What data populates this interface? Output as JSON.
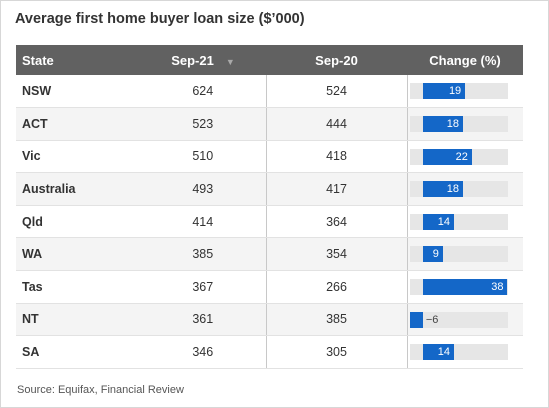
{
  "chart_data": {
    "type": "table",
    "title": "Average first home buyer loan size ($’000)",
    "columns": [
      "State",
      "Sep-21",
      "Sep-20",
      "Change (%)"
    ],
    "sort_indicator": "▼",
    "rows": [
      {
        "state": "NSW",
        "sep21": "624",
        "sep20": "524",
        "change": 19
      },
      {
        "state": "ACT",
        "sep21": "523",
        "sep20": "444",
        "change": 18
      },
      {
        "state": "Vic",
        "sep21": "510",
        "sep20": "418",
        "change": 22
      },
      {
        "state": "Australia",
        "sep21": "493",
        "sep20": "417",
        "change": 18
      },
      {
        "state": "Qld",
        "sep21": "414",
        "sep20": "364",
        "change": 14
      },
      {
        "state": "WA",
        "sep21": "385",
        "sep20": "354",
        "change": 9
      },
      {
        "state": "Tas",
        "sep21": "367",
        "sep20": "266",
        "change": 38
      },
      {
        "state": "NT",
        "sep21": "361",
        "sep20": "385",
        "change": -6
      },
      {
        "state": "SA",
        "sep21": "346",
        "sep20": "305",
        "change": 14
      }
    ],
    "change_range": [
      -6,
      38
    ],
    "bar_color": "#1467c8",
    "source": "Source: Equifax, Financial Review"
  }
}
